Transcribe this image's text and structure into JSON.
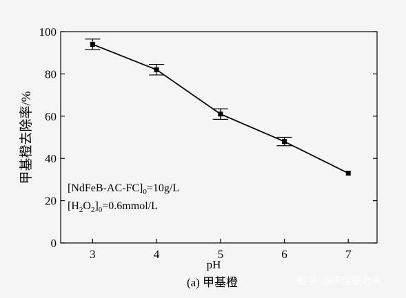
{
  "chart_data": {
    "type": "line",
    "ylabel": "甲基橙去除率/%",
    "xlabel": "pH",
    "caption": "(a) 甲基橙",
    "x": [
      3,
      4,
      5,
      6,
      7
    ],
    "y": [
      94,
      82,
      61,
      48,
      33
    ],
    "error": [
      2.5,
      2.5,
      2.5,
      2.0,
      0
    ],
    "xlim": [
      2.5,
      7.45
    ],
    "ylim": [
      0,
      100
    ],
    "xticks": [
      3,
      4,
      5,
      6,
      7
    ],
    "yticks": [
      0,
      20,
      40,
      60,
      80,
      100
    ],
    "grid": false,
    "annotations": {
      "line1_main": "[NdFeB-AC-FC]",
      "line1_sub": "0",
      "line1_tail": "=10g/L",
      "line2_a": "[H",
      "line2_sub1": "2",
      "line2_b": "O",
      "line2_sub2": "2",
      "line2_c": "]",
      "line2_sub3": "0",
      "line2_tail": "=0.6mmol/L"
    },
    "colors": {
      "line": "#000000",
      "marker": "#000000",
      "background": "#f5f5f6"
    }
  },
  "watermark": "知乎 @环保倔老头"
}
